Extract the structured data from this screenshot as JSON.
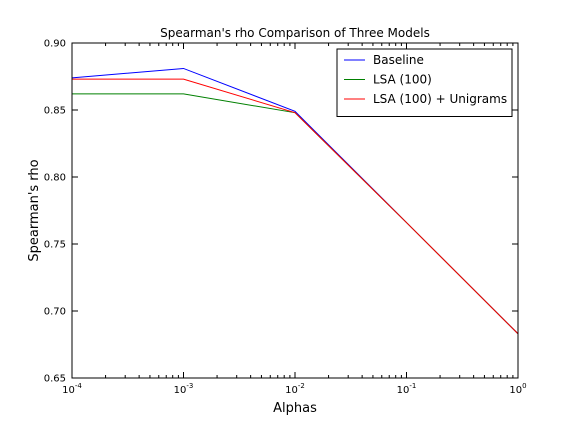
{
  "chart_data": {
    "type": "line",
    "title": "Spearman's rho Comparison of Three Models",
    "xlabel": "Alphas",
    "ylabel": "Spearman's rho",
    "xscale": "log",
    "x": [
      0.0001,
      0.001,
      0.01,
      0.1,
      1
    ],
    "x_tick_labels": [
      {
        "base": "10",
        "exp": "-4"
      },
      {
        "base": "10",
        "exp": "-3"
      },
      {
        "base": "10",
        "exp": "-2"
      },
      {
        "base": "10",
        "exp": "-1"
      },
      {
        "base": "10",
        "exp": "0"
      }
    ],
    "ylim": [
      0.65,
      0.9
    ],
    "y_ticks": [
      0.65,
      0.7,
      0.75,
      0.8,
      0.85,
      0.9
    ],
    "y_tick_labels": [
      "0.65",
      "0.70",
      "0.75",
      "0.80",
      "0.85",
      "0.90"
    ],
    "grid": false,
    "legend_position": "top-right",
    "series": [
      {
        "name": "Baseline",
        "color": "#0000ff",
        "values": [
          0.874,
          0.881,
          0.849,
          0.766,
          0.683
        ]
      },
      {
        "name": "LSA (100)",
        "color": "#008000",
        "values": [
          0.862,
          0.862,
          0.848,
          0.766,
          0.683
        ]
      },
      {
        "name": "LSA (100) + Unigrams",
        "color": "#ff0000",
        "values": [
          0.873,
          0.873,
          0.848,
          0.766,
          0.683
        ]
      }
    ]
  }
}
